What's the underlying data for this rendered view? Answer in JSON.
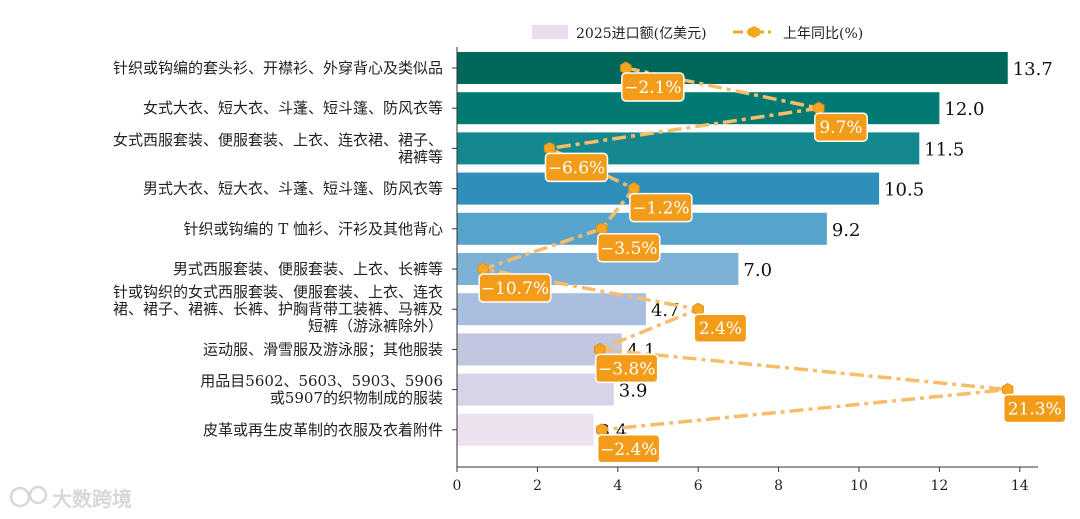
{
  "chart_data": {
    "type": "bar",
    "orientation": "horizontal",
    "categories": [
      "针织或钩编的套头衫、开襟衫、外穿背心及类似品",
      "女式大衣、短大衣、斗蓬、短斗篷、防风衣等",
      "女式西服套装、便服套装、上衣、连衣裙、裙子、裙裤等",
      "男式大衣、短大衣、斗蓬、短斗篷、防风衣等",
      "针织或钩编的T恤衫、汗衫及其他背心",
      "男式西服套装、便服套装、上衣、长裤等",
      "针或钩织的女式西服套装、便服套装、上衣、连衣裙、裙子、裙裤、长裤、护胸背带工装裤、马裤及短裤（游泳裤除外）",
      "运动服、滑雪服及游泳服；其他服装",
      "用品目5602、5603、5903、5906或5907的织物制成的服装",
      "皮革或再生皮革制的衣服及衣着附件"
    ],
    "category_lines": [
      [
        "针织或钩编的套头衫、开襟衫、外穿背心及类似品"
      ],
      [
        "女式大衣、短大衣、斗蓬、短斗篷、防风衣等"
      ],
      [
        "女式西服套装、便服套装、上衣、连衣裙、裙子、",
        "裙裤等"
      ],
      [
        "男式大衣、短大衣、斗蓬、短斗篷、防风衣等"
      ],
      [
        "针织或钩编的 T 恤衫、汗衫及其他背心"
      ],
      [
        "男式西服套装、便服套装、上衣、长裤等"
      ],
      [
        "针或钩织的女式西服套装、便服套装、上衣、连衣",
        "裙、裙子、裙裤、长裤、护胸背带工装裤、马裤及",
        "短裤（游泳裤除外）"
      ],
      [
        "运动服、滑雪服及游泳服；其他服装"
      ],
      [
        "用品目5602、5603、5903、5906",
        "或5907的织物制成的服装"
      ],
      [
        "皮革或再生皮革制的衣服及衣着附件"
      ]
    ],
    "series": [
      {
        "name": "2025进口额(亿美元)",
        "values": [
          13.7,
          12.0,
          11.5,
          10.5,
          9.2,
          7.0,
          4.7,
          4.1,
          3.9,
          3.4
        ],
        "value_labels": [
          "13.7",
          "12.0",
          "11.5",
          "10.5",
          "9.2",
          "7.0",
          "4.7",
          "4.1",
          "3.9",
          "3.4"
        ],
        "colors": [
          "#00685a",
          "#007a72",
          "#13888f",
          "#2e8fba",
          "#56a3cc",
          "#7db2d6",
          "#a9bfdf",
          "#c2c7e0",
          "#d7d4e7",
          "#ece2ef"
        ]
      },
      {
        "name": "上年同比(%)",
        "values": [
          -2.1,
          9.7,
          -6.6,
          -1.2,
          -3.5,
          -10.7,
          2.4,
          -3.8,
          21.3,
          -2.4
        ],
        "value_labels": [
          "−2.1%",
          "9.7%",
          "−6.6%",
          "−1.2%",
          "−3.5%",
          "−10.7%",
          "2.4%",
          "−3.8%",
          "21.3%",
          "−2.4%"
        ],
        "plot_x": [
          4.2,
          9.0,
          2.3,
          4.4,
          3.6,
          0.65,
          6.0,
          3.55,
          13.7,
          3.6
        ],
        "color": "#f5a623"
      }
    ],
    "x_ticks": [
      "0",
      "2",
      "4",
      "6",
      "8",
      "10",
      "12",
      "14"
    ],
    "xlim": [
      0,
      14.4
    ],
    "legend": {
      "position": "top",
      "entries": [
        "2025进口额(亿美元)",
        "上年同比(%)"
      ]
    }
  },
  "watermark": {
    "text": "大数跨境",
    "icon": "brand-logo-icon"
  }
}
